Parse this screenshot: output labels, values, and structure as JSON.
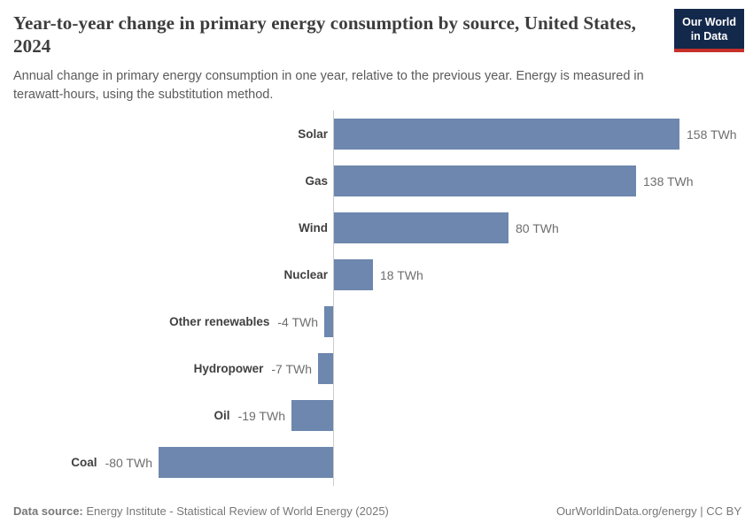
{
  "header": {
    "title": "Year-to-year change in primary energy consumption by source, United States, 2024",
    "subtitle": "Annual change in primary energy consumption in one year, relative to the previous year. Energy is measured in terawatt-hours, using the substitution method."
  },
  "logo": {
    "line1": "Our World",
    "line2": "in Data"
  },
  "chart_data": {
    "type": "bar",
    "orientation": "horizontal",
    "title": "Year-to-year change in primary energy consumption by source, United States, 2024",
    "unit": "TWh",
    "categories": [
      "Solar",
      "Gas",
      "Wind",
      "Nuclear",
      "Other renewables",
      "Hydropower",
      "Oil",
      "Coal"
    ],
    "values": [
      158,
      138,
      80,
      18,
      -4,
      -7,
      -19,
      -80
    ],
    "value_labels": [
      "158 TWh",
      "138 TWh",
      "80 TWh",
      "18 TWh",
      "-4 TWh",
      "-7 TWh",
      "-19 TWh",
      "-80 TWh"
    ],
    "xlim": [
      -80,
      158
    ],
    "grid": false,
    "legend": false,
    "axis_tick_labels_visible": false
  },
  "colors": {
    "bar": "#6d87ae",
    "axis_line": "#cccccc",
    "logo_bg": "#13294b",
    "logo_red": "#c5302a"
  },
  "footer": {
    "datasource_label": "Data source:",
    "datasource_text": " Energy Institute - Statistical Review of World Energy (2025)",
    "right_text": "OurWorldinData.org/energy | CC BY"
  }
}
